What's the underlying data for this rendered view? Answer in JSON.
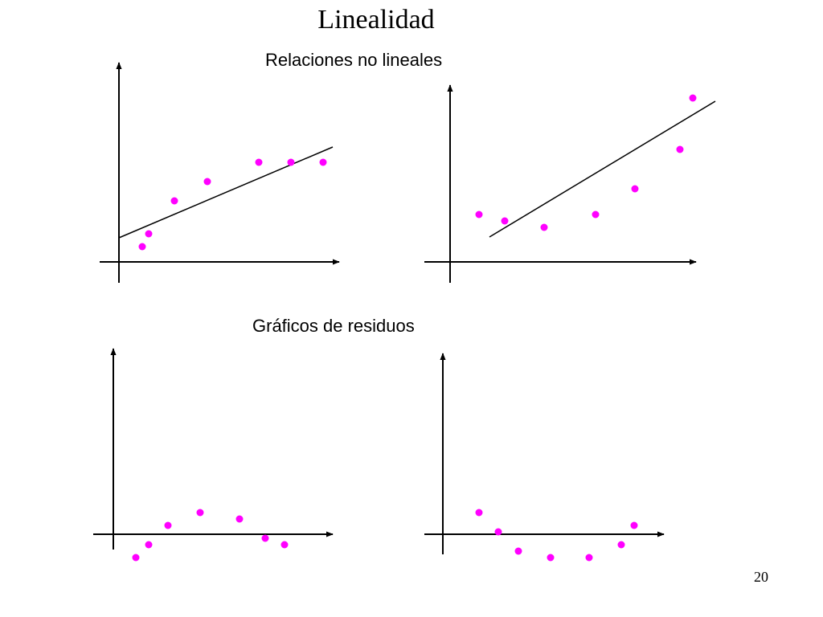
{
  "slide": {
    "title": "Linealidad",
    "subtitle_top": "Relaciones no lineales",
    "subtitle_bottom": "Gráficos de residuos",
    "page_number": "20"
  },
  "colors": {
    "point": "#ff00ff",
    "axis": "#000000",
    "line": "#000000"
  }
}
